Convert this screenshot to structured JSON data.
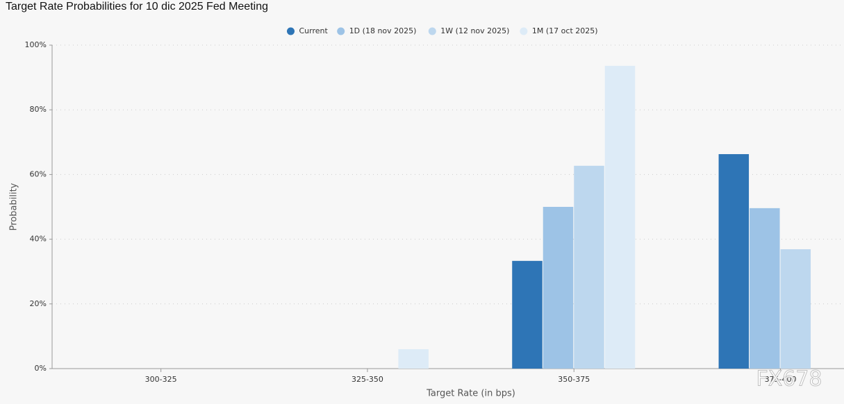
{
  "chart_data": {
    "type": "bar",
    "title": "Target Rate Probabilities for 10 dic 2025 Fed Meeting",
    "x_label": "Target Rate (in bps)",
    "y_label": "Probability",
    "categories": [
      "300-325",
      "325-350",
      "350-375",
      "375-400"
    ],
    "series": [
      {
        "name": "Current",
        "color": "#2e75b6",
        "values": [
          0,
          0,
          33.3,
          66.3
        ]
      },
      {
        "name": "1D (18 nov 2025)",
        "color": "#9dc3e6",
        "values": [
          0,
          0,
          50.0,
          49.6
        ]
      },
      {
        "name": "1W (12 nov 2025)",
        "color": "#bdd7ee",
        "values": [
          0,
          0,
          62.7,
          36.9
        ]
      },
      {
        "name": "1M (17 oct 2025)",
        "color": "#ddebf7",
        "values": [
          0,
          6.0,
          93.6,
          0
        ]
      }
    ],
    "ylim": [
      0,
      100
    ],
    "yticks": [
      {
        "value": 0,
        "label": "0%"
      },
      {
        "value": 20,
        "label": "20%"
      },
      {
        "value": 40,
        "label": "40%"
      },
      {
        "value": 60,
        "label": "60%"
      },
      {
        "value": 80,
        "label": "80%"
      },
      {
        "value": 100,
        "label": "100%"
      }
    ],
    "grid": true,
    "legend": "top",
    "watermark": "FX678"
  }
}
